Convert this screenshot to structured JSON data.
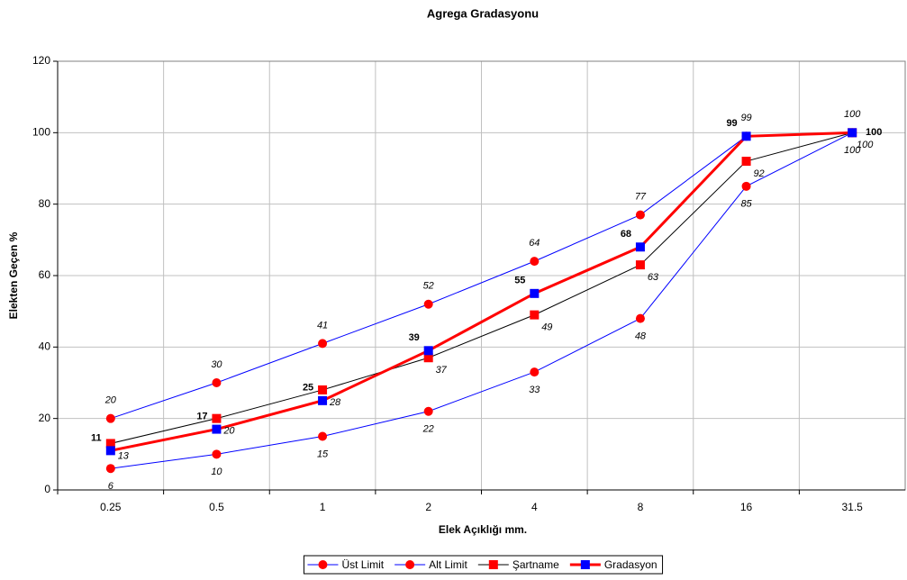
{
  "chart_data": {
    "type": "line",
    "title": "Agrega Gradasyonu",
    "x_label": "Elek Açıklığı mm.",
    "y_label": "Elekten Geçen %",
    "categories": [
      "0.25",
      "0.5",
      "1",
      "2",
      "4",
      "8",
      "16",
      "31.5"
    ],
    "ylim": [
      0,
      120
    ],
    "yticks": [
      0,
      20,
      40,
      60,
      80,
      100,
      120
    ],
    "grid": true,
    "series": [
      {
        "name": "Üst Limit",
        "color": "#0000ff",
        "marker": "circle",
        "marker_color": "#ff0000",
        "line_width": 1,
        "label_style": "italic",
        "values": [
          20,
          30,
          41,
          52,
          64,
          77,
          99,
          100
        ]
      },
      {
        "name": "Alt Limit",
        "color": "#0000ff",
        "marker": "circle",
        "marker_color": "#ff0000",
        "line_width": 1,
        "label_style": "italic",
        "values": [
          6,
          10,
          15,
          22,
          33,
          48,
          85,
          100
        ]
      },
      {
        "name": "Şartname",
        "color": "#000000",
        "marker": "square",
        "marker_color": "#ff0000",
        "line_width": 1,
        "label_style": "italic",
        "values": [
          13,
          20,
          28,
          37,
          49,
          63,
          92,
          100
        ]
      },
      {
        "name": "Gradasyon",
        "color": "#ff0000",
        "marker": "square",
        "marker_color": "#0000ff",
        "line_width": 3,
        "label_style": "bold",
        "values": [
          11,
          17,
          25,
          39,
          55,
          68,
          99,
          100
        ]
      }
    ]
  }
}
